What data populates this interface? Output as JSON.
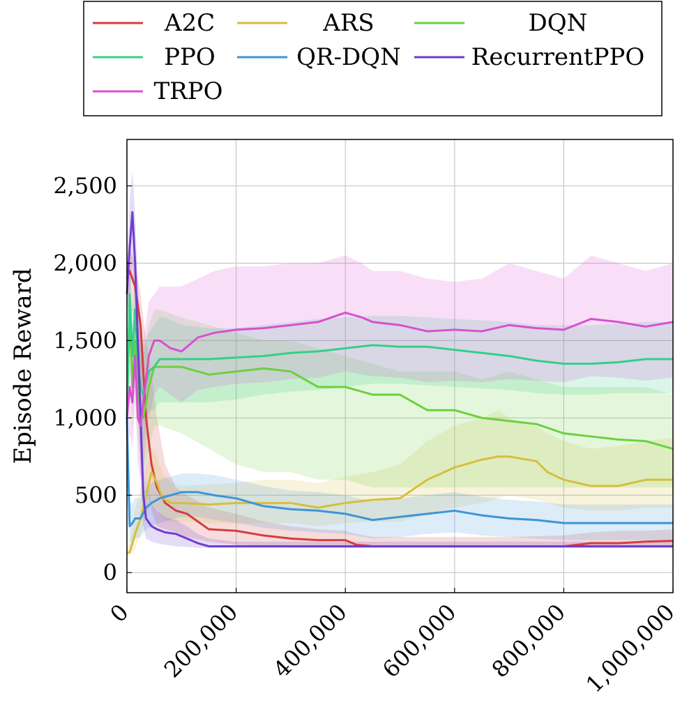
{
  "chart_data": {
    "type": "line",
    "title": "",
    "xlabel": "",
    "ylabel": "Episode Reward",
    "xlim": [
      0,
      1000000
    ],
    "ylim": [
      -130,
      2800
    ],
    "grid": true,
    "legend_position": "top",
    "x_ticks": [
      {
        "value": 0,
        "label": "0"
      },
      {
        "value": 200000,
        "label": "200,000"
      },
      {
        "value": 400000,
        "label": "400,000"
      },
      {
        "value": 600000,
        "label": "600,000"
      },
      {
        "value": 800000,
        "label": "800,000"
      },
      {
        "value": 1000000,
        "label": "1,000,000"
      }
    ],
    "y_ticks": [
      {
        "value": 0,
        "label": "0"
      },
      {
        "value": 500,
        "label": "500"
      },
      {
        "value": 1000,
        "label": "1,000"
      },
      {
        "value": 1500,
        "label": "1,500"
      },
      {
        "value": 2000,
        "label": "2,000"
      },
      {
        "value": 2500,
        "label": "2,500"
      }
    ],
    "series": [
      {
        "name": "A2C",
        "color": "#d43d3d",
        "x": [
          0,
          5000,
          15000,
          25000,
          35000,
          45000,
          55000,
          70000,
          90000,
          110000,
          150000,
          200000,
          250000,
          300000,
          350000,
          400000,
          420000,
          450000,
          480000,
          500000,
          600000,
          700000,
          800000,
          850000,
          900000,
          950000,
          1000000
        ],
        "y": [
          1900,
          1950,
          1850,
          1600,
          1000,
          700,
          550,
          450,
          400,
          380,
          280,
          270,
          240,
          220,
          210,
          210,
          180,
          170,
          170,
          170,
          170,
          170,
          170,
          190,
          190,
          200,
          205
        ],
        "upper": [
          2050,
          2100,
          2000,
          1800,
          1500,
          1300,
          1000,
          700,
          550,
          500,
          420,
          380,
          330,
          300,
          280,
          270,
          250,
          230,
          230,
          230,
          230,
          230,
          240,
          260,
          270,
          270,
          280
        ],
        "lower": [
          1700,
          1750,
          1600,
          1300,
          600,
          400,
          300,
          280,
          260,
          230,
          200,
          180,
          170,
          160,
          160,
          160,
          160,
          160,
          160,
          160,
          160,
          160,
          160,
          160,
          160,
          160,
          160
        ]
      },
      {
        "name": "ARS",
        "color": "#d6be3d",
        "x": [
          0,
          5000,
          15000,
          25000,
          35000,
          45000,
          55000,
          65000,
          80000,
          100000,
          150000,
          200000,
          250000,
          300000,
          350000,
          400000,
          450000,
          500000,
          550000,
          600000,
          650000,
          680000,
          700000,
          750000,
          770000,
          800000,
          850000,
          900000,
          950000,
          1000000
        ],
        "y": [
          130,
          130,
          250,
          350,
          500,
          650,
          580,
          480,
          450,
          450,
          440,
          450,
          450,
          450,
          420,
          450,
          470,
          480,
          600,
          680,
          730,
          750,
          750,
          720,
          650,
          600,
          560,
          560,
          600,
          600
        ],
        "upper": [
          160,
          200,
          400,
          550,
          700,
          800,
          750,
          650,
          580,
          560,
          570,
          580,
          600,
          600,
          580,
          620,
          650,
          700,
          850,
          950,
          1000,
          1050,
          1000,
          950,
          900,
          850,
          800,
          820,
          850,
          870
        ],
        "lower": [
          110,
          110,
          150,
          250,
          350,
          450,
          420,
          350,
          330,
          330,
          320,
          320,
          320,
          320,
          300,
          320,
          330,
          330,
          380,
          420,
          450,
          480,
          500,
          470,
          450,
          420,
          400,
          400,
          420,
          420
        ]
      },
      {
        "name": "DQN",
        "color": "#6ad13d",
        "x": [
          0,
          5000,
          10000,
          15000,
          20000,
          25000,
          30000,
          40000,
          50000,
          60000,
          100000,
          150000,
          200000,
          250000,
          300000,
          350000,
          400000,
          450000,
          500000,
          550000,
          600000,
          650000,
          700000,
          750000,
          800000,
          850000,
          900000,
          950000,
          1000000
        ],
        "y": [
          1000,
          1700,
          1200,
          1500,
          1200,
          1050,
          1000,
          1200,
          1330,
          1330,
          1330,
          1280,
          1300,
          1320,
          1300,
          1200,
          1200,
          1150,
          1150,
          1050,
          1050,
          1000,
          980,
          960,
          900,
          880,
          860,
          850,
          800
        ],
        "upper": [
          1200,
          1900,
          1600,
          1700,
          1500,
          1450,
          1400,
          1600,
          1700,
          1700,
          1650,
          1600,
          1550,
          1500,
          1500,
          1450,
          1400,
          1350,
          1300,
          1300,
          1300,
          1250,
          1300,
          1250,
          1200,
          1200,
          1200,
          1200,
          1150
        ],
        "lower": [
          800,
          1500,
          900,
          1200,
          900,
          700,
          650,
          800,
          950,
          950,
          900,
          800,
          700,
          650,
          650,
          600,
          600,
          550,
          550,
          550,
          550,
          550,
          550,
          550,
          550,
          550,
          550,
          550,
          550
        ]
      },
      {
        "name": "PPO",
        "color": "#34cf8a",
        "x": [
          0,
          5000,
          10000,
          15000,
          20000,
          25000,
          30000,
          40000,
          50000,
          60000,
          70000,
          100000,
          150000,
          200000,
          250000,
          300000,
          350000,
          400000,
          450000,
          500000,
          550000,
          600000,
          650000,
          700000,
          750000,
          800000,
          850000,
          900000,
          950000,
          1000000
        ],
        "y": [
          1000,
          1800,
          1400,
          1700,
          1350,
          1200,
          1150,
          1300,
          1330,
          1380,
          1380,
          1380,
          1380,
          1390,
          1400,
          1420,
          1430,
          1450,
          1470,
          1460,
          1460,
          1440,
          1420,
          1400,
          1370,
          1350,
          1350,
          1360,
          1380,
          1380
        ],
        "upper": [
          1200,
          2000,
          1700,
          1900,
          1650,
          1500,
          1450,
          1550,
          1600,
          1650,
          1650,
          1600,
          1580,
          1580,
          1600,
          1620,
          1640,
          1650,
          1660,
          1660,
          1650,
          1640,
          1630,
          1620,
          1600,
          1600,
          1600,
          1610,
          1620,
          1620
        ],
        "lower": [
          800,
          1600,
          1100,
          1400,
          1050,
          900,
          850,
          1050,
          1050,
          1100,
          1100,
          1100,
          1100,
          1120,
          1150,
          1170,
          1180,
          1200,
          1220,
          1220,
          1210,
          1200,
          1190,
          1180,
          1160,
          1150,
          1150,
          1160,
          1160,
          1160
        ]
      },
      {
        "name": "QR-DQN",
        "color": "#3b95d6",
        "x": [
          0,
          5000,
          10000,
          15000,
          25000,
          35000,
          45000,
          60000,
          80000,
          100000,
          130000,
          160000,
          200000,
          250000,
          300000,
          350000,
          400000,
          450000,
          500000,
          550000,
          600000,
          650000,
          700000,
          750000,
          800000,
          850000,
          900000,
          950000,
          1000000
        ],
        "y": [
          1000,
          300,
          320,
          350,
          350,
          420,
          450,
          480,
          500,
          520,
          520,
          500,
          480,
          430,
          410,
          400,
          380,
          340,
          360,
          380,
          400,
          370,
          350,
          340,
          320,
          320,
          320,
          320,
          320
        ],
        "upper": [
          1200,
          450,
          450,
          480,
          480,
          550,
          580,
          600,
          620,
          640,
          640,
          630,
          600,
          560,
          530,
          520,
          500,
          460,
          480,
          500,
          520,
          490,
          470,
          460,
          440,
          440,
          440,
          440,
          440
        ],
        "lower": [
          800,
          200,
          200,
          220,
          230,
          280,
          300,
          320,
          340,
          360,
          360,
          340,
          320,
          290,
          270,
          260,
          250,
          220,
          230,
          250,
          260,
          240,
          230,
          220,
          210,
          210,
          210,
          210,
          210
        ]
      },
      {
        "name": "RecurrentPPO",
        "color": "#6f3ccf",
        "x": [
          0,
          5000,
          10000,
          15000,
          20000,
          25000,
          30000,
          35000,
          45000,
          55000,
          70000,
          90000,
          110000,
          130000,
          150000,
          200000,
          300000,
          400000,
          500000,
          600000,
          700000,
          800000,
          900000,
          1000000
        ],
        "y": [
          1800,
          2100,
          2330,
          2000,
          1500,
          1000,
          500,
          350,
          300,
          280,
          260,
          250,
          220,
          190,
          170,
          170,
          170,
          170,
          170,
          170,
          170,
          170,
          170,
          170
        ],
        "upper": [
          2000,
          2400,
          2600,
          2300,
          1900,
          1500,
          900,
          600,
          450,
          400,
          360,
          340,
          300,
          250,
          220,
          200,
          200,
          200,
          200,
          200,
          200,
          200,
          200,
          200
        ],
        "lower": [
          1600,
          1800,
          2000,
          1700,
          1100,
          600,
          300,
          220,
          200,
          190,
          180,
          170,
          165,
          160,
          160,
          160,
          160,
          160,
          160,
          160,
          160,
          160,
          160,
          160
        ]
      },
      {
        "name": "TRPO",
        "color": "#d94fd0",
        "x": [
          0,
          5000,
          10000,
          15000,
          20000,
          25000,
          30000,
          40000,
          50000,
          60000,
          80000,
          100000,
          130000,
          160000,
          200000,
          250000,
          300000,
          350000,
          400000,
          430000,
          450000,
          500000,
          550000,
          600000,
          650000,
          700000,
          750000,
          800000,
          850000,
          900000,
          950000,
          1000000
        ],
        "y": [
          1000,
          1200,
          1100,
          1400,
          1000,
          950,
          1100,
          1400,
          1500,
          1500,
          1450,
          1430,
          1520,
          1550,
          1570,
          1580,
          1600,
          1620,
          1680,
          1650,
          1620,
          1600,
          1560,
          1570,
          1560,
          1600,
          1580,
          1570,
          1640,
          1620,
          1590,
          1620
        ],
        "upper": [
          1200,
          1500,
          1400,
          1700,
          1400,
          1350,
          1500,
          1750,
          1800,
          1850,
          1850,
          1850,
          1900,
          1950,
          1980,
          1980,
          2000,
          2000,
          2050,
          2000,
          1950,
          1950,
          1900,
          1880,
          1900,
          2000,
          1950,
          1900,
          2050,
          2000,
          1950,
          2000
        ],
        "lower": [
          800,
          900,
          800,
          1100,
          700,
          600,
          700,
          1000,
          1150,
          1200,
          1150,
          1100,
          1180,
          1200,
          1220,
          1230,
          1250,
          1260,
          1300,
          1280,
          1270,
          1260,
          1230,
          1240,
          1230,
          1250,
          1240,
          1230,
          1270,
          1260,
          1240,
          1260
        ]
      }
    ]
  }
}
